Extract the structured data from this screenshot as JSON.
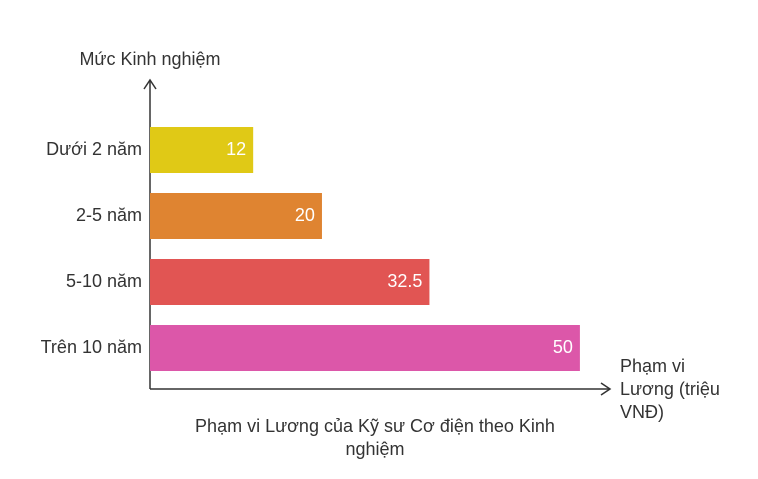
{
  "chart_data": {
    "type": "bar",
    "orientation": "horizontal",
    "title": "Phạm vi Lương của Kỹ sư Cơ điện theo Kinh nghiệm",
    "x_label": "Phạm vi Lương (triệu VNĐ)",
    "y_label": "Mức Kinh nghiệm",
    "categories": [
      "Dưới 2 năm",
      "2-5 năm",
      "5-10 năm",
      "Trên 10 năm"
    ],
    "values": [
      12,
      20,
      32.5,
      50
    ],
    "colors": [
      "#e0c916",
      "#df8431",
      "#e15553",
      "#dc57a9"
    ],
    "xlim": [
      0,
      53.5
    ],
    "grid": false
  }
}
